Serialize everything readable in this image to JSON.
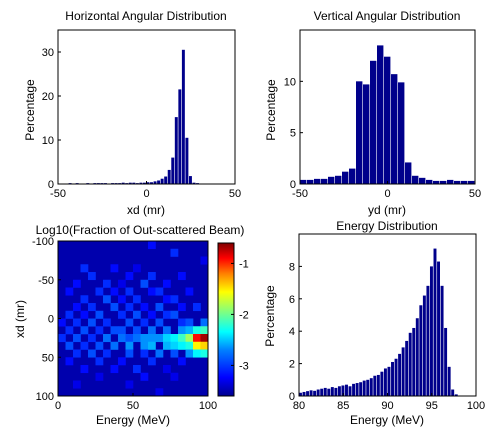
{
  "chart_data": [
    {
      "type": "bar",
      "title": "Horizontal Angular Distribution",
      "xlabel": "xd (mr)",
      "ylabel": "Percentage",
      "xlim": [
        -50,
        50
      ],
      "ylim": [
        0,
        35
      ],
      "x_ticks": [
        "-50",
        "0",
        "50"
      ],
      "y_ticks": [
        "0",
        "10",
        "20",
        "30"
      ],
      "bin_width": 2,
      "x": [
        -49,
        -47,
        -45,
        -43,
        -41,
        -39,
        -37,
        -35,
        -33,
        -31,
        -29,
        -27,
        -25,
        -23,
        -21,
        -19,
        -17,
        -15,
        -13,
        -11,
        -9,
        -7,
        -5,
        -3,
        -1,
        1,
        3,
        5,
        7,
        9,
        11,
        13,
        15,
        17,
        19,
        21,
        23,
        25,
        27,
        29,
        31,
        33,
        35,
        37,
        39,
        41,
        43,
        45,
        47,
        49
      ],
      "values": [
        0.1,
        0.1,
        0.1,
        0.2,
        0.1,
        0.2,
        0.1,
        0.1,
        0.2,
        0.1,
        0.2,
        0.2,
        0.2,
        0.2,
        0.1,
        0.2,
        0.2,
        0.2,
        0.3,
        0.2,
        0.3,
        0.3,
        0.2,
        0.3,
        0.3,
        0.4,
        0.4,
        0.6,
        0.8,
        1.2,
        1.7,
        3.2,
        6.0,
        15.2,
        21.5,
        30.5,
        10.5,
        1.8,
        0.3,
        0.2,
        0.1,
        0.1,
        0.1,
        0.1,
        0.1,
        0.1,
        0.1,
        0.1,
        0.1,
        0.1
      ]
    },
    {
      "type": "bar",
      "title": "Vertical Angular Distribution",
      "xlabel": "yd (mr)",
      "ylabel": "Percentage",
      "xlim": [
        -50,
        50
      ],
      "ylim": [
        0,
        15
      ],
      "x_ticks": [
        "-50",
        "0",
        "50"
      ],
      "y_ticks": [
        "0",
        "5",
        "10"
      ],
      "bin_width": 4,
      "x": [
        -48,
        -44,
        -40,
        -36,
        -32,
        -28,
        -24,
        -20,
        -16,
        -12,
        -8,
        -4,
        0,
        4,
        8,
        12,
        16,
        20,
        24,
        28,
        32,
        36,
        40,
        44,
        48
      ],
      "values": [
        0.4,
        0.4,
        0.5,
        0.5,
        0.7,
        0.8,
        1.2,
        1.5,
        10.0,
        9.7,
        12.0,
        13.5,
        12.4,
        10.7,
        9.9,
        2.1,
        0.8,
        0.6,
        0.4,
        0.3,
        0.3,
        0.4,
        0.3,
        0.3,
        0.3
      ]
    },
    {
      "type": "heatmap",
      "title": "Log10(Fraction of Out-scattered Beam)",
      "xlabel": "Energy (MeV)",
      "ylabel": "xd (mr)",
      "xlim": [
        0,
        100
      ],
      "ylim": [
        -100,
        100
      ],
      "x_ticks": [
        "0",
        "50",
        "100"
      ],
      "y_ticks": [
        "-100",
        "-50",
        "0",
        "50",
        "100"
      ],
      "colorbar": {
        "ticks": [
          "-1",
          "-2",
          "-3"
        ],
        "range": [
          -3.6,
          -0.6
        ]
      },
      "colormap": [
        "#00008f",
        "#0000ff",
        "#0080ff",
        "#00ffff",
        "#80ff80",
        "#ffff00",
        "#ff8000",
        "#ff0000",
        "#800000"
      ],
      "background": -3.5,
      "nx": 20,
      "ny": 20,
      "cells": [
        [
          12,
          0,
          -3.2
        ],
        [
          15,
          1,
          -3.1
        ],
        [
          19,
          2,
          -3.3
        ],
        [
          3,
          3,
          -3.1
        ],
        [
          7,
          3,
          -3.2
        ],
        [
          10,
          3,
          -3.3
        ],
        [
          4,
          4,
          -3.1
        ],
        [
          9,
          4,
          -3.2
        ],
        [
          12,
          4,
          -3.1
        ],
        [
          16,
          4,
          -3.2
        ],
        [
          2,
          5,
          -3.2
        ],
        [
          6,
          5,
          -3.1
        ],
        [
          8,
          5,
          -3.3
        ],
        [
          11,
          5,
          -3.0
        ],
        [
          14,
          5,
          -3.2
        ],
        [
          1,
          6,
          -3.2
        ],
        [
          5,
          6,
          -3.1
        ],
        [
          7,
          6,
          -3.2
        ],
        [
          9,
          6,
          -3.1
        ],
        [
          12,
          6,
          -3.2
        ],
        [
          13,
          6,
          -3.1
        ],
        [
          17,
          6,
          -3.2
        ],
        [
          3,
          7,
          -3.1
        ],
        [
          6,
          7,
          -3.0
        ],
        [
          8,
          7,
          -3.2
        ],
        [
          10,
          7,
          -3.1
        ],
        [
          14,
          7,
          -3.2
        ],
        [
          15,
          7,
          -3.1
        ],
        [
          2,
          8,
          -3.2
        ],
        [
          4,
          8,
          -3.1
        ],
        [
          7,
          8,
          -3.0
        ],
        [
          9,
          8,
          -3.1
        ],
        [
          11,
          8,
          -3.2
        ],
        [
          13,
          8,
          -3.0
        ],
        [
          16,
          8,
          -3.2
        ],
        [
          18,
          8,
          -3.1
        ],
        [
          1,
          9,
          -3.1
        ],
        [
          3,
          9,
          -3.2
        ],
        [
          5,
          9,
          -3.0
        ],
        [
          8,
          9,
          -3.1
        ],
        [
          10,
          9,
          -3.0
        ],
        [
          12,
          9,
          -3.2
        ],
        [
          14,
          9,
          -3.1
        ],
        [
          15,
          9,
          -3.0
        ],
        [
          0,
          10,
          -3.2
        ],
        [
          2,
          10,
          -3.1
        ],
        [
          4,
          10,
          -3.0
        ],
        [
          6,
          10,
          -3.1
        ],
        [
          9,
          10,
          -3.0
        ],
        [
          11,
          10,
          -3.1
        ],
        [
          13,
          10,
          -3.0
        ],
        [
          16,
          10,
          -3.1
        ],
        [
          17,
          10,
          -3.0
        ],
        [
          19,
          10,
          -2.9
        ],
        [
          1,
          11,
          -3.1
        ],
        [
          3,
          11,
          -3.0
        ],
        [
          5,
          11,
          -3.1
        ],
        [
          7,
          11,
          -3.0
        ],
        [
          8,
          11,
          -3.0
        ],
        [
          10,
          11,
          -3.0
        ],
        [
          12,
          11,
          -2.9
        ],
        [
          14,
          11,
          -2.9
        ],
        [
          16,
          11,
          -2.8
        ],
        [
          17,
          11,
          -2.7
        ],
        [
          18,
          11,
          -2.4
        ],
        [
          19,
          11,
          -2.3
        ],
        [
          0,
          12,
          -3.1
        ],
        [
          2,
          12,
          -3.0
        ],
        [
          4,
          12,
          -3.1
        ],
        [
          6,
          12,
          -2.9
        ],
        [
          8,
          12,
          -2.9
        ],
        [
          9,
          12,
          -3.0
        ],
        [
          10,
          12,
          -2.9
        ],
        [
          11,
          12,
          -2.8
        ],
        [
          12,
          12,
          -2.8
        ],
        [
          13,
          12,
          -2.8
        ],
        [
          14,
          12,
          -2.6
        ],
        [
          15,
          12,
          -2.5
        ],
        [
          16,
          12,
          -2.3
        ],
        [
          17,
          12,
          -2.0
        ],
        [
          18,
          12,
          -1.0
        ],
        [
          19,
          12,
          -0.7
        ],
        [
          1,
          13,
          -3.0
        ],
        [
          3,
          13,
          -3.1
        ],
        [
          5,
          13,
          -3.0
        ],
        [
          7,
          13,
          -2.9
        ],
        [
          9,
          13,
          -2.8
        ],
        [
          11,
          13,
          -2.8
        ],
        [
          12,
          13,
          -2.7
        ],
        [
          14,
          13,
          -2.7
        ],
        [
          15,
          13,
          -2.6
        ],
        [
          16,
          13,
          -2.5
        ],
        [
          17,
          13,
          -2.4
        ],
        [
          18,
          13,
          -1.7
        ],
        [
          19,
          13,
          -1.6
        ],
        [
          2,
          14,
          -3.1
        ],
        [
          4,
          14,
          -3.0
        ],
        [
          6,
          14,
          -3.1
        ],
        [
          9,
          14,
          -3.0
        ],
        [
          11,
          14,
          -3.1
        ],
        [
          13,
          14,
          -2.9
        ],
        [
          15,
          14,
          -3.0
        ],
        [
          17,
          14,
          -2.8
        ],
        [
          18,
          14,
          -2.5
        ],
        [
          19,
          14,
          -2.4
        ],
        [
          1,
          15,
          -3.2
        ],
        [
          5,
          15,
          -3.1
        ],
        [
          8,
          15,
          -3.2
        ],
        [
          12,
          15,
          -3.1
        ],
        [
          16,
          15,
          -3.2
        ],
        [
          3,
          16,
          -3.2
        ],
        [
          7,
          16,
          -3.2
        ],
        [
          10,
          16,
          -3.1
        ],
        [
          14,
          16,
          -3.3
        ],
        [
          5,
          17,
          -3.3
        ],
        [
          11,
          17,
          -3.2
        ],
        [
          15,
          17,
          -3.3
        ],
        [
          2,
          18,
          -3.3
        ],
        [
          9,
          18,
          -3.3
        ],
        [
          13,
          19,
          -3.3
        ]
      ]
    },
    {
      "type": "bar",
      "title": "Energy Distribution",
      "xlabel": "Energy (MeV)",
      "ylabel": "Percentage",
      "xlim": [
        80,
        100
      ],
      "ylim": [
        0,
        10
      ],
      "x_ticks": [
        "80",
        "85",
        "90",
        "95",
        "100"
      ],
      "y_ticks": [
        "0",
        "2",
        "4",
        "6",
        "8"
      ],
      "bin_width": 0.4,
      "x": [
        80.2,
        80.6,
        81.0,
        81.4,
        81.8,
        82.2,
        82.6,
        83.0,
        83.4,
        83.8,
        84.2,
        84.6,
        85.0,
        85.4,
        85.8,
        86.2,
        86.6,
        87.0,
        87.4,
        87.8,
        88.2,
        88.6,
        89.0,
        89.4,
        89.8,
        90.2,
        90.6,
        91.0,
        91.4,
        91.8,
        92.2,
        92.6,
        93.0,
        93.4,
        93.8,
        94.2,
        94.6,
        95.0,
        95.4,
        95.8,
        96.2,
        96.6,
        97.0,
        97.4,
        97.8,
        98.2,
        98.6,
        99.0,
        99.4,
        99.8
      ],
      "values": [
        0.2,
        0.25,
        0.3,
        0.35,
        0.32,
        0.4,
        0.45,
        0.5,
        0.45,
        0.55,
        0.5,
        0.6,
        0.65,
        0.7,
        0.6,
        0.75,
        0.8,
        0.85,
        0.95,
        1.0,
        1.1,
        1.25,
        1.3,
        1.5,
        1.7,
        1.8,
        2.1,
        2.3,
        2.6,
        3.0,
        3.4,
        3.9,
        4.2,
        4.8,
        5.6,
        6.2,
        6.8,
        8.0,
        9.1,
        8.3,
        6.8,
        4.2,
        1.8,
        0.4,
        0.1,
        0,
        0,
        0,
        0,
        0
      ]
    }
  ]
}
